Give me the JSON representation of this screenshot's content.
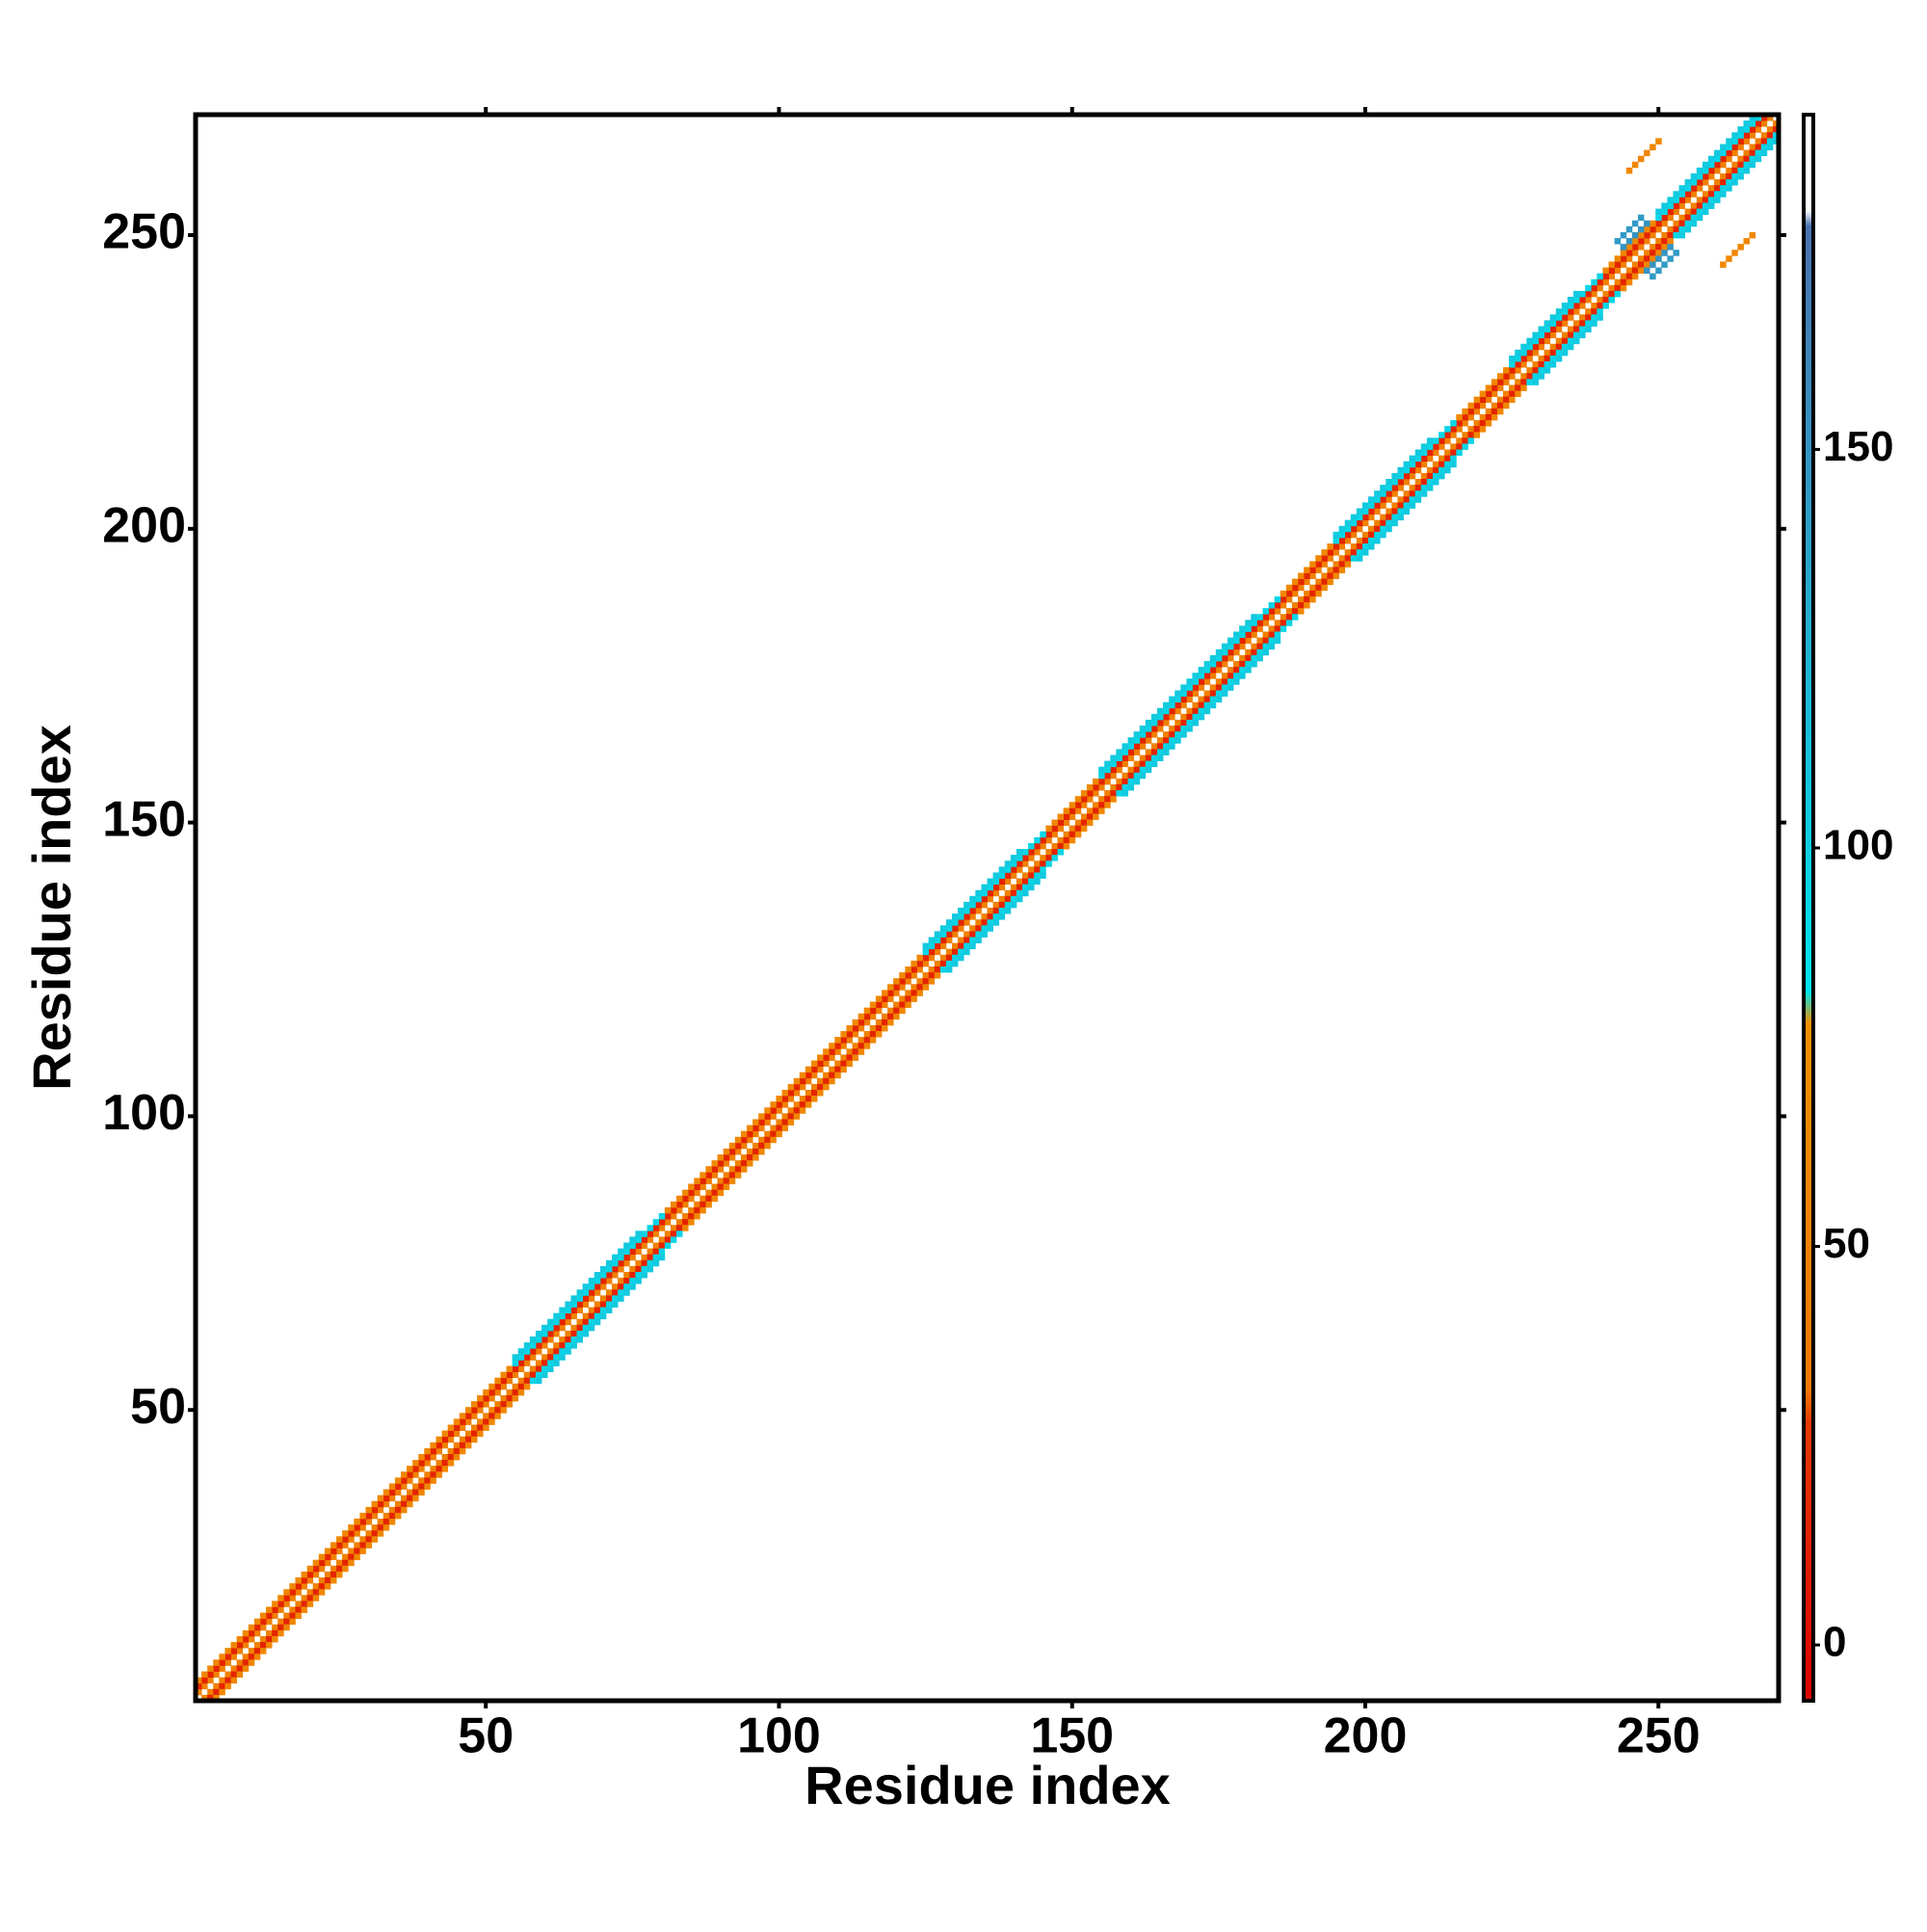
{
  "chart_data": {
    "type": "contact-map",
    "xlabel": "Residue index",
    "ylabel": "Residue index",
    "xlim": [
      0.5,
      270.5
    ],
    "ylim": [
      0.5,
      270.5
    ],
    "xticks": [
      50,
      100,
      150,
      200,
      250
    ],
    "yticks": [
      50,
      100,
      150,
      200,
      250
    ],
    "clim": [
      -7,
      192
    ],
    "cticks": [
      0,
      50,
      100,
      150
    ],
    "colorscale": [
      {
        "value": -7,
        "color": "#dd0000"
      },
      {
        "value": 28,
        "color": "#e83a00"
      },
      {
        "value": 32,
        "color": "#f07800"
      },
      {
        "value": 78,
        "color": "#f09000"
      },
      {
        "value": 82,
        "color": "#00e5ee"
      },
      {
        "value": 178,
        "color": "#4a72b0"
      },
      {
        "value": 180,
        "color": "#ffffff"
      },
      {
        "value": 192,
        "color": "#ffffff"
      }
    ],
    "segments": [
      [
        1,
        269,
        1,
        50
      ],
      [
        1,
        268,
        2,
        15
      ],
      [
        1,
        54,
        3,
        60
      ],
      [
        81,
        124,
        3,
        60
      ],
      [
        146,
        154,
        3,
        60
      ],
      [
        186,
        194,
        3,
        60
      ],
      [
        216,
        224,
        3,
        60
      ],
      [
        241,
        249,
        3,
        60
      ],
      [
        55,
        80,
        3,
        95
      ],
      [
        125,
        145,
        3,
        95
      ],
      [
        155,
        185,
        3,
        95
      ],
      [
        195,
        215,
        3,
        95
      ],
      [
        225,
        240,
        3,
        95
      ],
      [
        250,
        267,
        3,
        95
      ],
      [
        55,
        76,
        4,
        105
      ],
      [
        125,
        141,
        4,
        105
      ],
      [
        155,
        181,
        4,
        105
      ],
      [
        195,
        211,
        4,
        105
      ],
      [
        225,
        236,
        4,
        105
      ],
      [
        250,
        266,
        4,
        105
      ],
      [
        244,
        248,
        4,
        150
      ],
      [
        243,
        247,
        6,
        145
      ],
      [
        245,
        250,
        16,
        60
      ]
    ]
  }
}
